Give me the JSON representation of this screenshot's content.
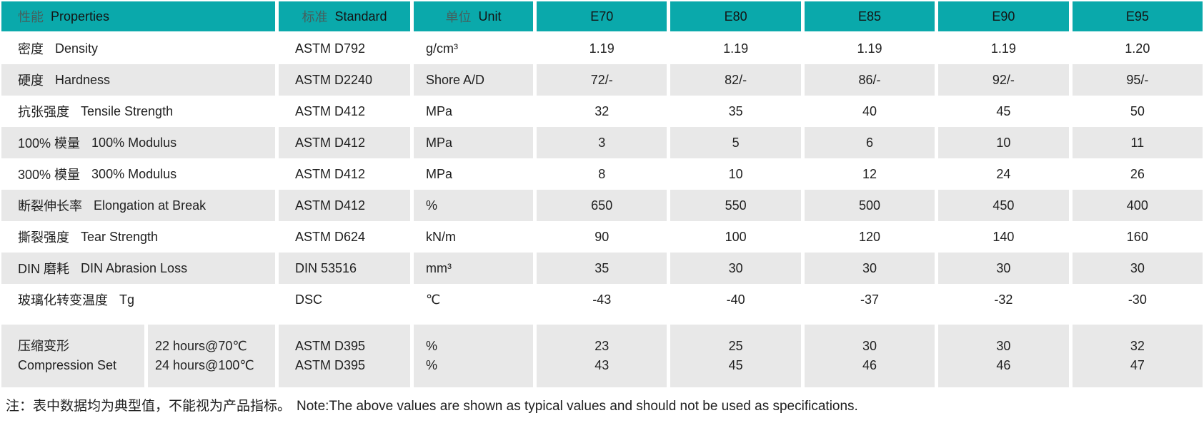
{
  "colors": {
    "accent": "#0aa9ab",
    "row_alt": "#e8e8e8",
    "header_zh_text": "#44605e",
    "text": "#1f1f1f"
  },
  "header": {
    "property": {
      "zh": "性能",
      "en": "Properties"
    },
    "standard": {
      "zh": "标准",
      "en": "Standard"
    },
    "unit": {
      "zh": "单位",
      "en": "Unit"
    },
    "grades": [
      "E70",
      "E80",
      "E85",
      "E90",
      "E95"
    ]
  },
  "rows": [
    {
      "zh": "密度",
      "en": "Density",
      "standard": "ASTM D792",
      "unit": "g/cm³",
      "values": [
        "1.19",
        "1.19",
        "1.19",
        "1.19",
        "1.20"
      ],
      "shaded": false
    },
    {
      "zh": "硬度",
      "en": "Hardness",
      "standard": "ASTM D2240",
      "unit": "Shore A/D",
      "values": [
        "72/-",
        "82/-",
        "86/-",
        "92/-",
        "95/-"
      ],
      "shaded": true
    },
    {
      "zh": "抗张强度",
      "en": "Tensile Strength",
      "standard": "ASTM D412",
      "unit": "MPa",
      "values": [
        "32",
        "35",
        "40",
        "45",
        "50"
      ],
      "shaded": false
    },
    {
      "zh": "100% 模量",
      "en": "100% Modulus",
      "standard": "ASTM D412",
      "unit": "MPa",
      "values": [
        "3",
        "5",
        "6",
        "10",
        "11"
      ],
      "shaded": true
    },
    {
      "zh": "300% 模量",
      "en": "300% Modulus",
      "standard": "ASTM D412",
      "unit": "MPa",
      "values": [
        "8",
        "10",
        "12",
        "24",
        "26"
      ],
      "shaded": false
    },
    {
      "zh": "断裂伸长率",
      "en": "Elongation at Break",
      "standard": "ASTM D412",
      "unit": "%",
      "values": [
        "650",
        "550",
        "500",
        "450",
        "400"
      ],
      "shaded": true
    },
    {
      "zh": "撕裂强度",
      "en": "Tear Strength",
      "standard": "ASTM D624",
      "unit": "kN/m",
      "values": [
        "90",
        "100",
        "120",
        "140",
        "160"
      ],
      "shaded": false
    },
    {
      "zh": "DIN 磨耗",
      "en": "DIN Abrasion Loss",
      "standard": "DIN 53516",
      "unit": "mm³",
      "values": [
        "35",
        "30",
        "30",
        "30",
        "30"
      ],
      "shaded": true
    },
    {
      "zh": "玻璃化转变温度",
      "en": "Tg",
      "standard": "DSC",
      "unit": "℃",
      "values": [
        "-43",
        "-40",
        "-37",
        "-32",
        "-30"
      ],
      "shaded": false
    }
  ],
  "compression_row": {
    "zh": "压缩变形",
    "en": "Compression Set",
    "conditions": [
      "22 hours@70℃",
      "24 hours@100℃"
    ],
    "standards": [
      "ASTM D395",
      "ASTM D395"
    ],
    "units": [
      "%",
      "%"
    ],
    "values": [
      [
        "23",
        "43"
      ],
      [
        "25",
        "45"
      ],
      [
        "30",
        "46"
      ],
      [
        "30",
        "46"
      ],
      [
        "32",
        "47"
      ]
    ]
  },
  "footnote": {
    "zh": "注：表中数据均为典型值，不能视为产品指标。",
    "en": "Note:The above values are shown as typical values and should not be used as specifications."
  }
}
